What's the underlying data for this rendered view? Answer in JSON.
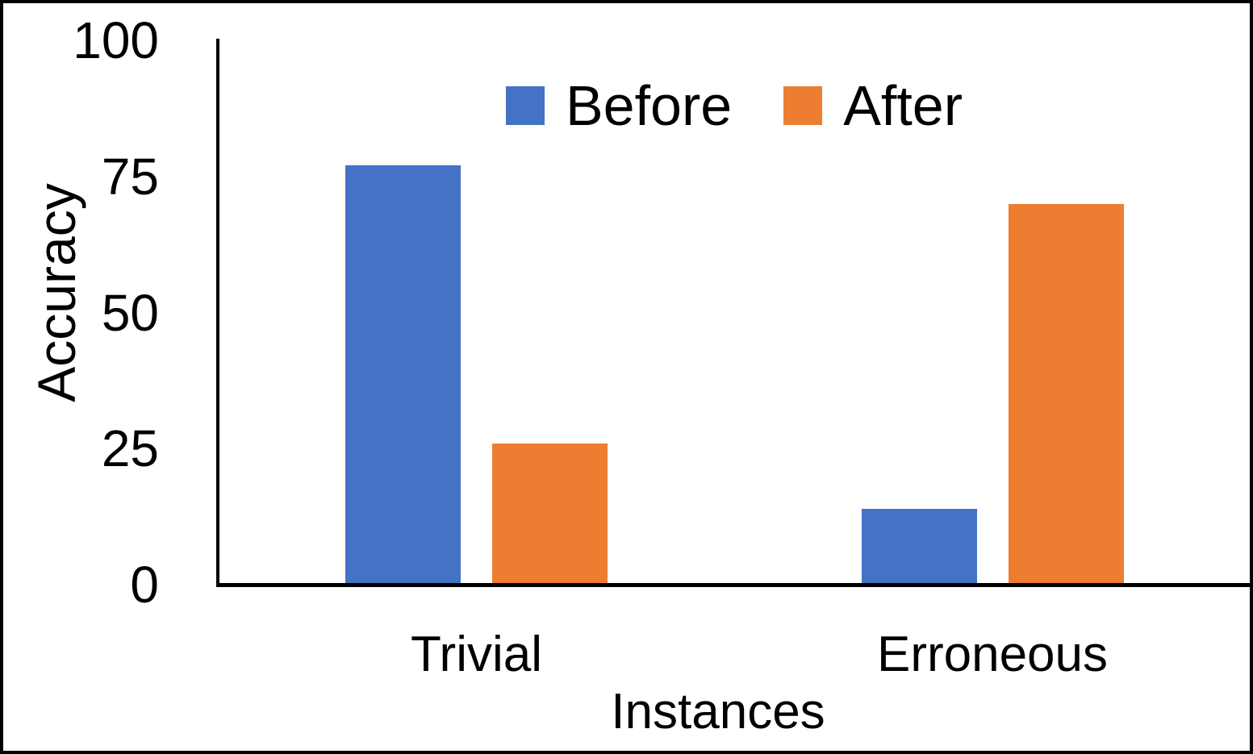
{
  "chart_data": {
    "type": "bar",
    "categories": [
      "Trivial",
      "Erroneous"
    ],
    "series": [
      {
        "name": "Before",
        "color": "#4472C4",
        "values": [
          77,
          14
        ]
      },
      {
        "name": "After",
        "color": "#ED7D31",
        "values": [
          26,
          70
        ]
      }
    ],
    "title": "",
    "xlabel": "Instances",
    "ylabel": "Accuracy",
    "ylim": [
      0,
      100
    ],
    "yticks": [
      0,
      25,
      50,
      75,
      100
    ],
    "legend_position": "top",
    "grid": false,
    "axis_color": "#000000",
    "text_color": "#000000",
    "background": "#FFFFFF",
    "border_color": "#000000"
  }
}
